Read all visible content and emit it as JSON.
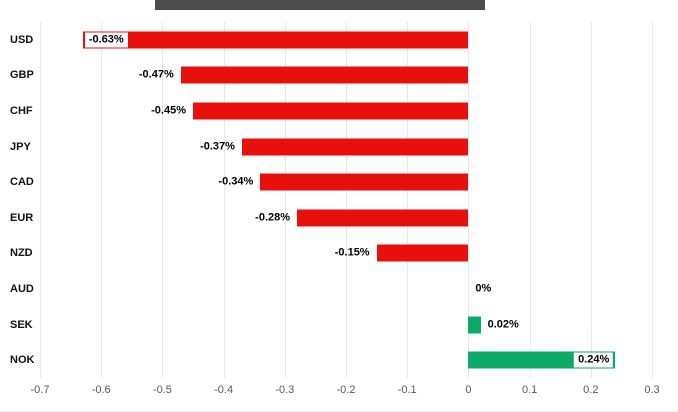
{
  "header": {
    "bar_color": "#4d4d4d"
  },
  "chart_data": {
    "type": "bar",
    "orientation": "horizontal",
    "title": "",
    "categories": [
      "USD",
      "GBP",
      "CHF",
      "JPY",
      "CAD",
      "EUR",
      "NZD",
      "AUD",
      "SEK",
      "NOK"
    ],
    "values": [
      -0.63,
      -0.47,
      -0.45,
      -0.37,
      -0.34,
      -0.28,
      -0.15,
      0,
      0.02,
      0.24
    ],
    "value_labels": [
      "-0.63%",
      "-0.47%",
      "-0.45%",
      "-0.37%",
      "-0.34%",
      "-0.28%",
      "-0.15%",
      "0%",
      "0.02%",
      "0.24%"
    ],
    "label_positions": [
      "inside-start",
      "outside-start",
      "outside-start",
      "outside-start",
      "outside-start",
      "outside-start",
      "outside-start",
      "outside-end",
      "outside-end",
      "inside-end"
    ],
    "xlim": [
      -0.7,
      0.3
    ],
    "xtick_values": [
      -0.7,
      -0.6,
      -0.5,
      -0.4,
      -0.3,
      -0.2,
      -0.1,
      0,
      0.1,
      0.2,
      0.3
    ],
    "xtick_labels": [
      "-0.7",
      "-0.6",
      "-0.5",
      "-0.4",
      "-0.3",
      "-0.2",
      "-0.1",
      "0",
      "0.1",
      "0.2",
      "0.3"
    ],
    "negative_color": "#e8100c",
    "positive_color": "#0caa67",
    "grid": true,
    "grid_color": "#e7e7e7",
    "legend": "none"
  }
}
